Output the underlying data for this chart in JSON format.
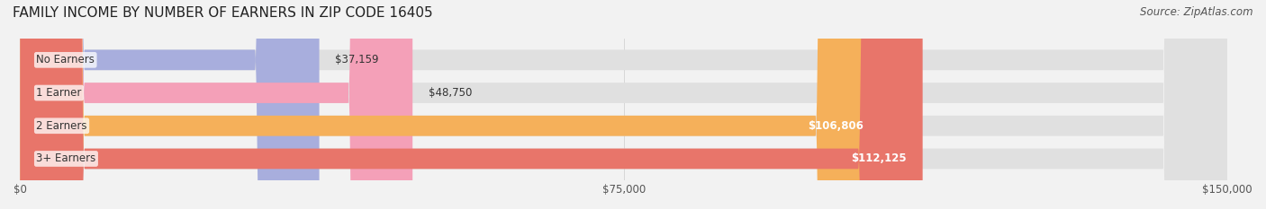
{
  "title": "FAMILY INCOME BY NUMBER OF EARNERS IN ZIP CODE 16405",
  "source": "Source: ZipAtlas.com",
  "categories": [
    "No Earners",
    "1 Earner",
    "2 Earners",
    "3+ Earners"
  ],
  "values": [
    37159,
    48750,
    106806,
    112125
  ],
  "bar_colors": [
    "#a8aedd",
    "#f4a0b8",
    "#f5b05a",
    "#e8756a"
  ],
  "label_colors": [
    "#333333",
    "#333333",
    "#ffffff",
    "#ffffff"
  ],
  "value_labels": [
    "$37,159",
    "$48,750",
    "$106,806",
    "$112,125"
  ],
  "xlim": [
    0,
    150000
  ],
  "xticks": [
    0,
    75000,
    150000
  ],
  "xticklabels": [
    "$0",
    "$75,000",
    "$150,000"
  ],
  "background_color": "#f2f2f2",
  "bar_background_color": "#e0e0e0",
  "title_fontsize": 11,
  "source_fontsize": 8.5
}
